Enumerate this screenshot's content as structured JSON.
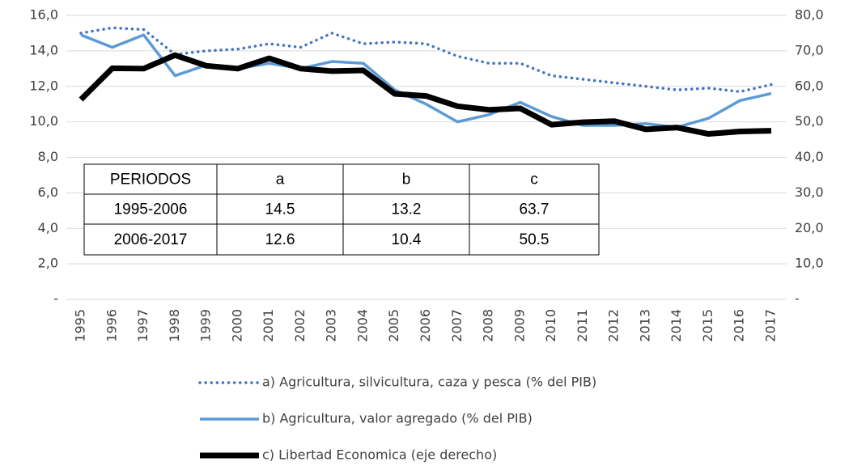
{
  "chart_data": {
    "type": "line",
    "categories": [
      "1995",
      "1996",
      "1997",
      "1998",
      "1999",
      "2000",
      "2001",
      "2002",
      "2003",
      "2004",
      "2005",
      "2006",
      "2007",
      "2008",
      "2009",
      "2010",
      "2011",
      "2012",
      "2013",
      "2014",
      "2015",
      "2016",
      "2017"
    ],
    "series": [
      {
        "name": "a) Agricultura, silvicultura, caza y pesca (% del PIB)",
        "color": "#4472c4",
        "style": "dotted",
        "values": [
          15.0,
          15.3,
          15.2,
          13.8,
          14.0,
          14.1,
          14.4,
          14.2,
          15.0,
          14.4,
          14.5,
          14.4,
          13.7,
          13.3,
          13.3,
          12.6,
          12.4,
          12.2,
          12.0,
          11.8,
          11.9,
          11.7,
          12.1
        ]
      },
      {
        "name": "b) Agricultura, valor agregado (% del PIB)",
        "color": "#5b9bd5",
        "style": "solid",
        "values": [
          14.9,
          14.2,
          14.9,
          12.6,
          13.2,
          13.0,
          13.3,
          13.0,
          13.4,
          13.3,
          11.8,
          11.0,
          10.0,
          10.4,
          11.1,
          10.3,
          9.8,
          9.8,
          9.9,
          9.7,
          10.2,
          11.2,
          11.6
        ]
      },
      {
        "name": "c) Libertad Economica (eje derecho)",
        "color": "#000000",
        "style": "thick",
        "axis": "y2",
        "values": [
          56.3,
          65.1,
          65.0,
          68.8,
          65.8,
          65.0,
          67.9,
          65.0,
          64.3,
          64.5,
          57.9,
          57.3,
          54.4,
          53.4,
          53.8,
          49.2,
          49.9,
          50.2,
          47.9,
          48.4,
          46.6,
          47.3,
          47.5
        ]
      }
    ],
    "ylim": [
      0,
      16
    ],
    "yticks": [
      {
        "value": 0,
        "label": "-"
      },
      {
        "value": 2,
        "label": "2,0"
      },
      {
        "value": 4,
        "label": "4,0"
      },
      {
        "value": 6,
        "label": "6,0"
      },
      {
        "value": 8,
        "label": "8,0"
      },
      {
        "value": 10,
        "label": "10,0"
      },
      {
        "value": 12,
        "label": "12,0"
      },
      {
        "value": 14,
        "label": "14,0"
      },
      {
        "value": 16,
        "label": "16,0"
      }
    ],
    "y2lim": [
      0,
      80
    ],
    "y2ticks": [
      {
        "value": 0,
        "label": "-"
      },
      {
        "value": 10,
        "label": "10,0"
      },
      {
        "value": 20,
        "label": "20,0"
      },
      {
        "value": 30,
        "label": "30,0"
      },
      {
        "value": 40,
        "label": "40,0"
      },
      {
        "value": 50,
        "label": "50,0"
      },
      {
        "value": 60,
        "label": "60,0"
      },
      {
        "value": 70,
        "label": "70,0"
      },
      {
        "value": 80,
        "label": "80,0"
      }
    ],
    "grid": true,
    "legend": "bottom",
    "table": {
      "header": [
        "PERIODOS",
        "a",
        "b",
        "c"
      ],
      "rows": [
        [
          "1995-2006",
          14.5,
          13.2,
          63.7
        ],
        [
          "2006-2017",
          12.6,
          10.4,
          50.5
        ]
      ]
    }
  }
}
